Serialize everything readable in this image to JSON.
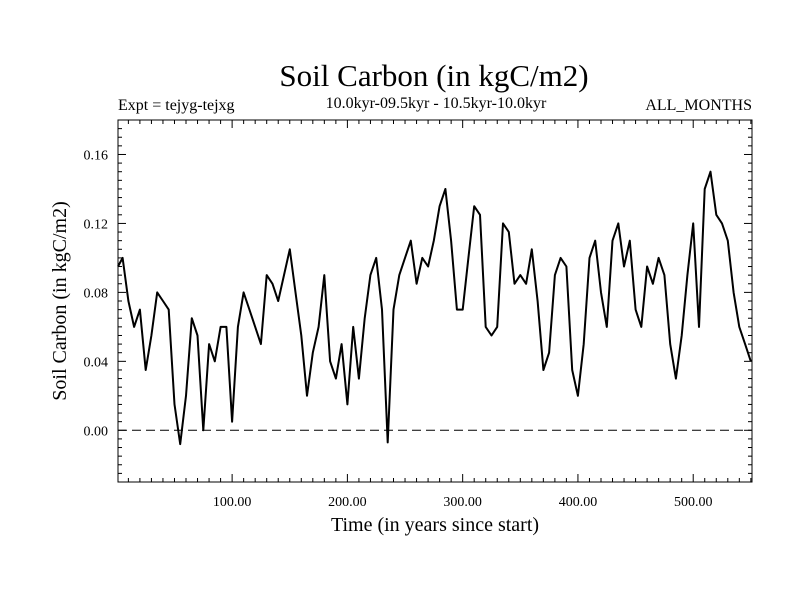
{
  "chart_data": {
    "type": "line",
    "title": "Soil Carbon (in kgC/m2)",
    "subtitle_left": "Expt = tejyg-tejxg",
    "subtitle_center": "10.0kyr-09.5kyr - 10.5kyr-10.0kyr",
    "subtitle_right": "ALL_MONTHS",
    "xlabel": "Time (in years since start)",
    "ylabel": "Soil Carbon (in kgC/m2)",
    "xlim": [
      1,
      551
    ],
    "ylim": [
      -0.03,
      0.18
    ],
    "x_ticks": [
      100,
      200,
      300,
      400,
      500
    ],
    "x_tick_labels": [
      "100.00",
      "200.00",
      "300.00",
      "400.00",
      "500.00"
    ],
    "y_ticks": [
      0.0,
      0.04,
      0.08,
      0.12,
      0.16
    ],
    "y_tick_labels": [
      "0.00",
      "0.04",
      "0.08",
      "0.12",
      "0.16"
    ],
    "reference_line": 0.0,
    "series": [
      {
        "name": "Soil Carbon",
        "color": "#000000",
        "x": [
          1,
          5,
          10,
          15,
          20,
          25,
          30,
          35,
          40,
          45,
          50,
          55,
          60,
          65,
          70,
          75,
          80,
          85,
          90,
          95,
          100,
          105,
          110,
          115,
          120,
          125,
          130,
          135,
          140,
          145,
          150,
          155,
          160,
          165,
          170,
          175,
          180,
          185,
          190,
          195,
          200,
          205,
          210,
          215,
          220,
          225,
          230,
          235,
          240,
          245,
          250,
          255,
          260,
          265,
          270,
          275,
          280,
          285,
          290,
          295,
          300,
          305,
          310,
          315,
          320,
          325,
          330,
          335,
          340,
          345,
          350,
          355,
          360,
          365,
          370,
          375,
          380,
          385,
          390,
          395,
          400,
          405,
          410,
          415,
          420,
          425,
          430,
          435,
          440,
          445,
          450,
          455,
          460,
          465,
          470,
          475,
          480,
          485,
          490,
          495,
          500,
          505,
          510,
          515,
          520,
          525,
          530,
          535,
          540,
          545,
          550
        ],
        "values": [
          0.095,
          0.1,
          0.075,
          0.06,
          0.07,
          0.035,
          0.055,
          0.08,
          0.075,
          0.07,
          0.015,
          -0.008,
          0.02,
          0.065,
          0.055,
          0.0,
          0.05,
          0.04,
          0.06,
          0.06,
          0.005,
          0.06,
          0.08,
          0.07,
          0.06,
          0.05,
          0.09,
          0.085,
          0.075,
          0.09,
          0.105,
          0.08,
          0.055,
          0.02,
          0.045,
          0.06,
          0.09,
          0.04,
          0.03,
          0.05,
          0.015,
          0.06,
          0.03,
          0.065,
          0.09,
          0.1,
          0.07,
          -0.007,
          0.07,
          0.09,
          0.1,
          0.11,
          0.085,
          0.1,
          0.095,
          0.11,
          0.13,
          0.14,
          0.11,
          0.07,
          0.07,
          0.1,
          0.13,
          0.125,
          0.06,
          0.055,
          0.06,
          0.12,
          0.115,
          0.085,
          0.09,
          0.085,
          0.105,
          0.075,
          0.035,
          0.045,
          0.09,
          0.1,
          0.095,
          0.035,
          0.02,
          0.05,
          0.1,
          0.11,
          0.08,
          0.06,
          0.11,
          0.12,
          0.095,
          0.11,
          0.07,
          0.06,
          0.095,
          0.085,
          0.1,
          0.09,
          0.05,
          0.03,
          0.055,
          0.09,
          0.12,
          0.06,
          0.14,
          0.15,
          0.125,
          0.12,
          0.11,
          0.08,
          0.06,
          0.05,
          0.04
        ]
      }
    ]
  }
}
